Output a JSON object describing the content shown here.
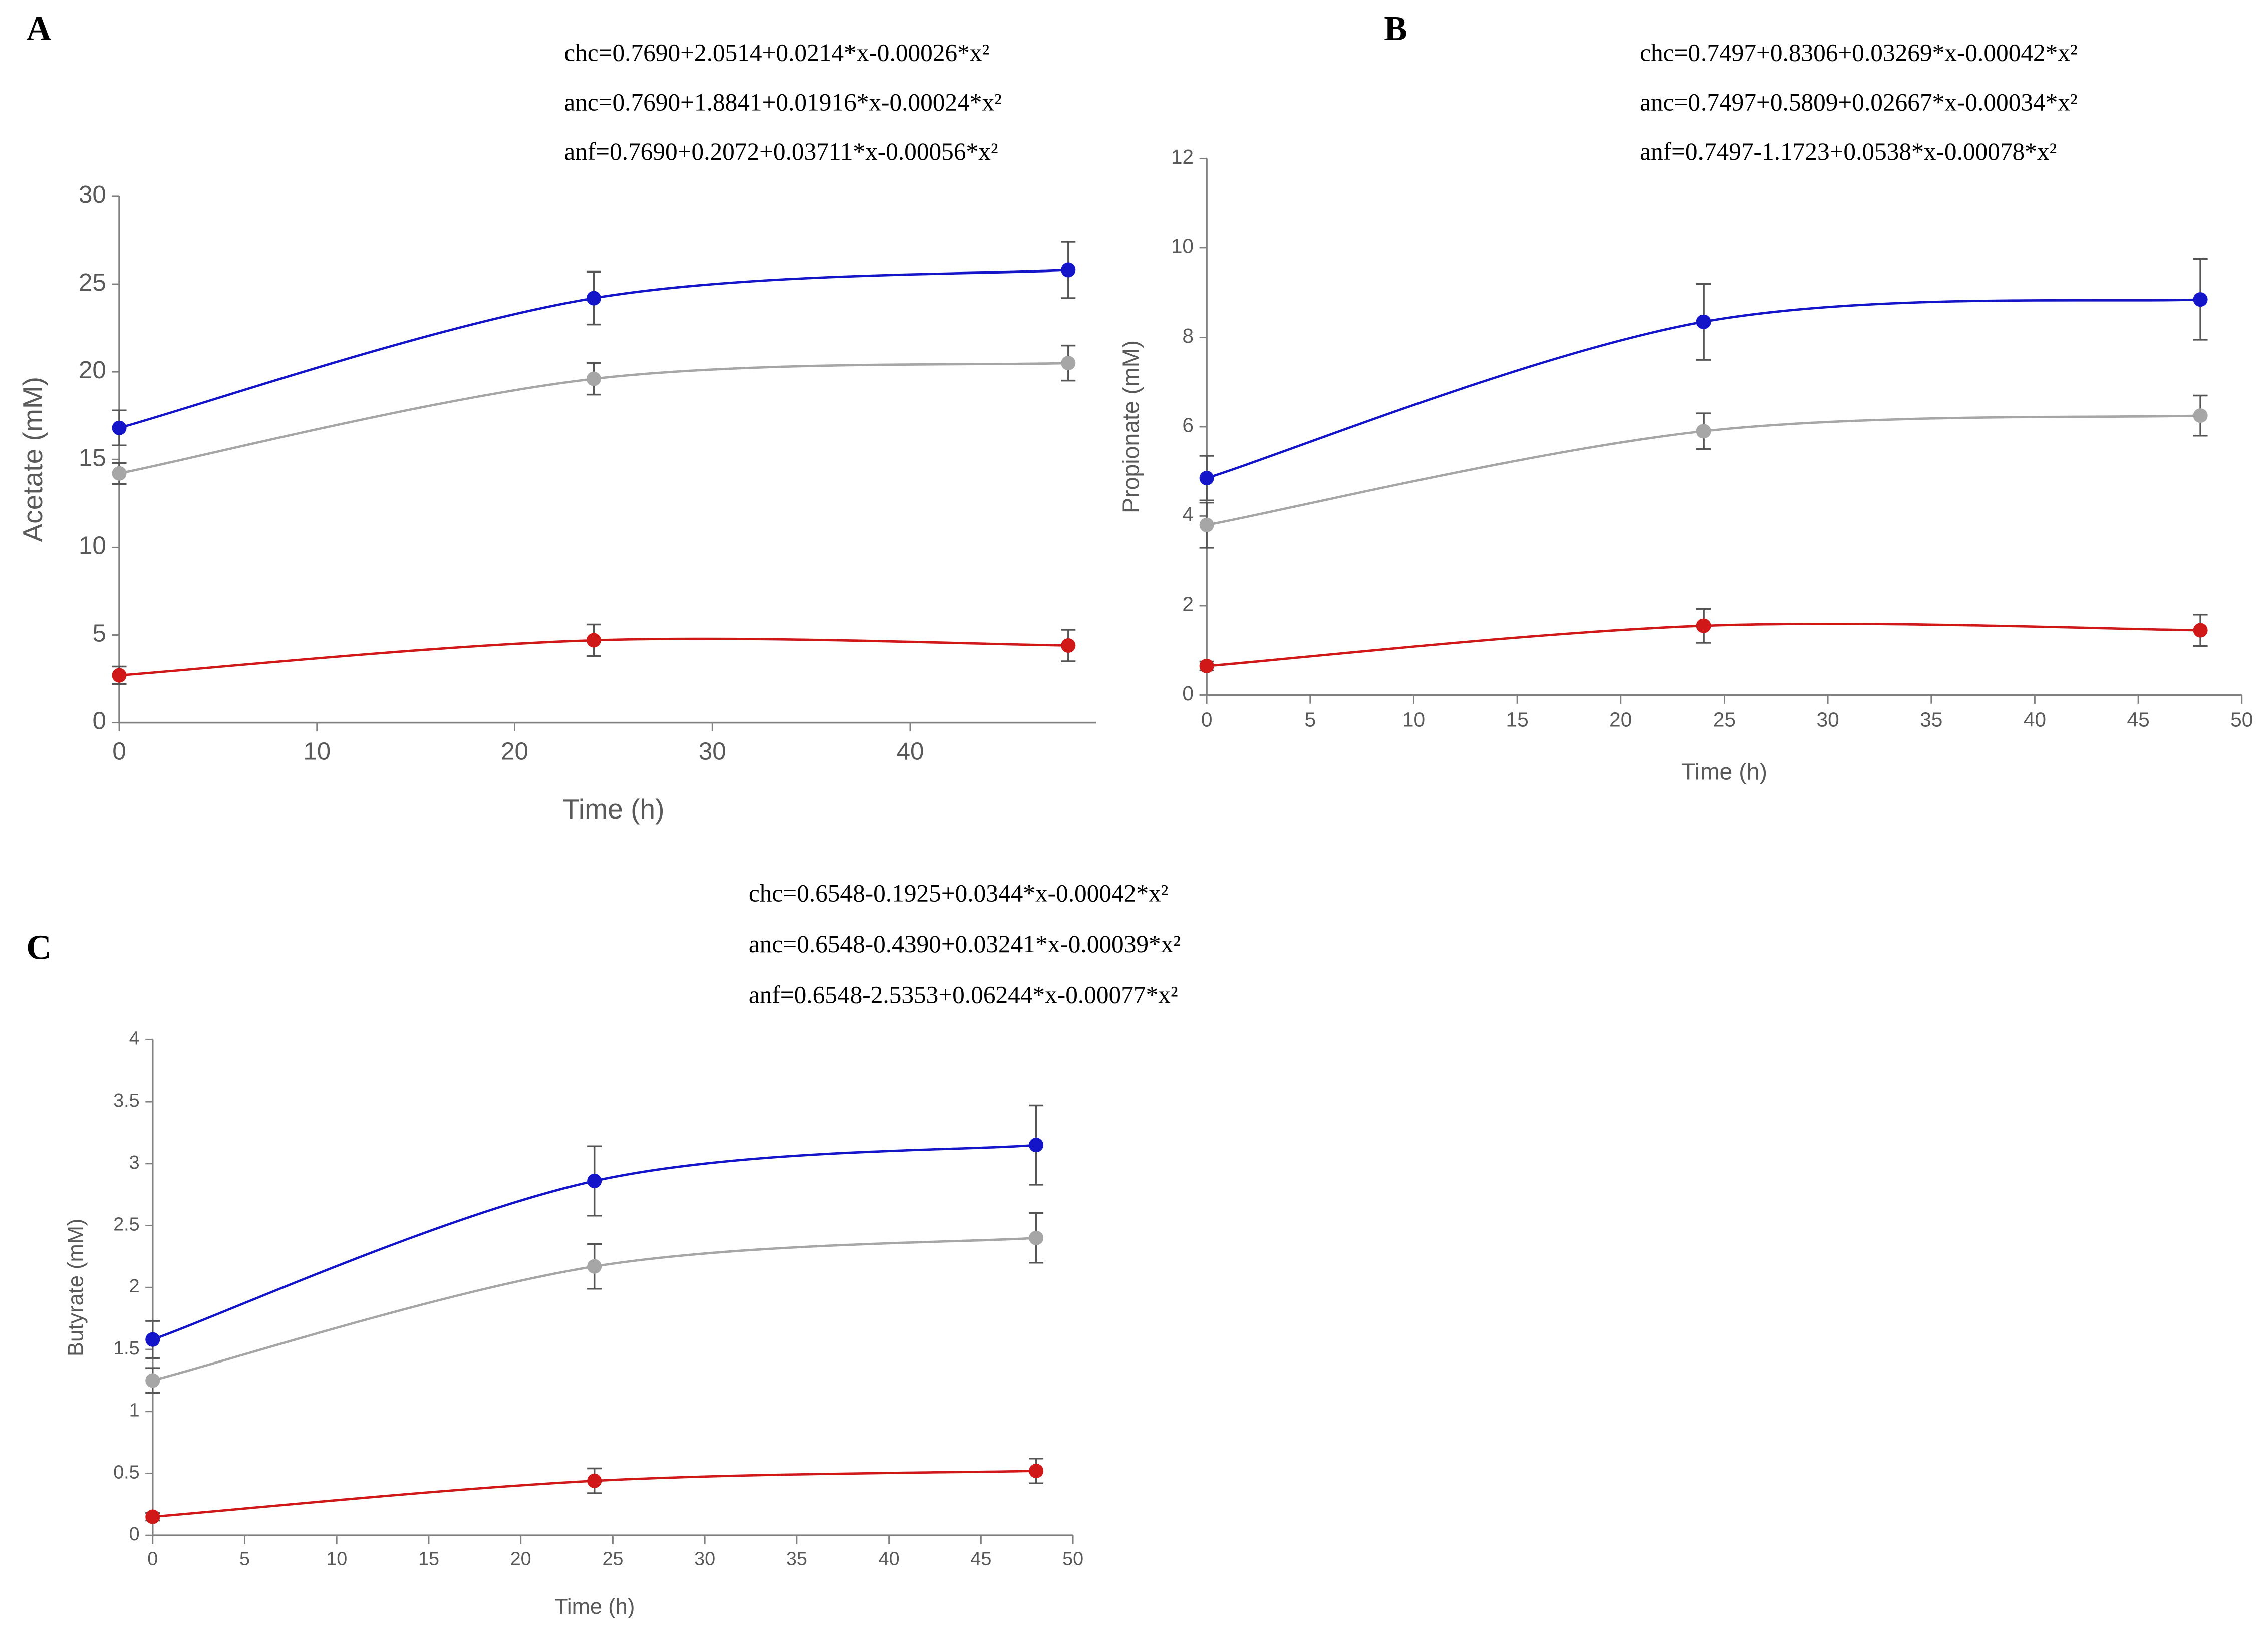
{
  "chart_data": [
    {
      "type": "line",
      "panel": "A",
      "equations": [
        "chc=0.7690+2.0514+0.0214*x-0.00026*x²",
        "anc=0.7690+1.8841+0.01916*x-0.00024*x²",
        "anf=0.7690+0.2072+0.03711*x-0.00056*x²"
      ],
      "y_label": "Acetate (mM)",
      "x_label": "Time (h)",
      "x": [
        0,
        24,
        48
      ],
      "xlim": [
        0,
        50
      ],
      "xticks": [
        0,
        10,
        20,
        30,
        40
      ],
      "ylim": [
        0,
        30
      ],
      "yticks": [
        0,
        5,
        10,
        15,
        20,
        25,
        30
      ],
      "grid": false,
      "series": [
        {
          "color": "#1414c8",
          "values": [
            16.8,
            24.2,
            25.8
          ],
          "errors": [
            1.0,
            1.5,
            1.6
          ]
        },
        {
          "color": "#a6a6a6",
          "values": [
            14.2,
            19.6,
            20.5
          ],
          "errors": [
            0.6,
            0.9,
            1.0
          ]
        },
        {
          "color": "#d01818",
          "values": [
            2.7,
            4.7,
            4.4
          ],
          "errors": [
            0.5,
            0.9,
            0.9
          ]
        }
      ]
    },
    {
      "type": "line",
      "panel": "B",
      "equations": [
        "chc=0.7497+0.8306+0.03269*x-0.00042*x²",
        "anc=0.7497+0.5809+0.02667*x-0.00034*x²",
        "anf=0.7497-1.1723+0.0538*x-0.00078*x²"
      ],
      "y_label": "Propionate (mM)",
      "x_label": "Time (h)",
      "x": [
        0,
        24,
        48
      ],
      "xlim": [
        0,
        50
      ],
      "xticks": [
        0,
        5,
        10,
        15,
        20,
        25,
        30,
        35,
        40,
        45,
        50
      ],
      "ylim": [
        0,
        12
      ],
      "yticks": [
        0,
        2,
        4,
        6,
        8,
        10,
        12
      ],
      "grid": false,
      "series": [
        {
          "color": "#1414c8",
          "values": [
            4.85,
            8.35,
            8.85
          ],
          "errors": [
            0.5,
            0.85,
            0.9
          ]
        },
        {
          "color": "#a6a6a6",
          "values": [
            3.8,
            5.9,
            6.25
          ],
          "errors": [
            0.5,
            0.4,
            0.45
          ]
        },
        {
          "color": "#d01818",
          "values": [
            0.65,
            1.55,
            1.45
          ],
          "errors": [
            0.1,
            0.38,
            0.35
          ]
        }
      ]
    },
    {
      "type": "line",
      "panel": "C",
      "equations": [
        "chc=0.6548-0.1925+0.0344*x-0.00042*x²",
        "anc=0.6548-0.4390+0.03241*x-0.00039*x²",
        "anf=0.6548-2.5353+0.06244*x-0.00077*x²"
      ],
      "y_label": "Butyrate (mM)",
      "x_label": "Time (h)",
      "x": [
        0,
        24,
        48
      ],
      "xlim": [
        0,
        50
      ],
      "xticks": [
        0,
        5,
        10,
        15,
        20,
        25,
        30,
        35,
        40,
        45,
        50
      ],
      "ylim": [
        0,
        4
      ],
      "yticks": [
        0,
        0.5,
        1,
        1.5,
        2,
        2.5,
        3,
        3.5,
        4
      ],
      "grid": false,
      "series": [
        {
          "color": "#1414c8",
          "values": [
            1.58,
            2.86,
            3.15
          ],
          "errors": [
            0.15,
            0.28,
            0.32
          ]
        },
        {
          "color": "#a6a6a6",
          "values": [
            1.25,
            2.17,
            2.4
          ],
          "errors": [
            0.1,
            0.18,
            0.2
          ]
        },
        {
          "color": "#d01818",
          "values": [
            0.15,
            0.44,
            0.52
          ],
          "errors": [
            0.03,
            0.1,
            0.1
          ]
        }
      ]
    }
  ]
}
